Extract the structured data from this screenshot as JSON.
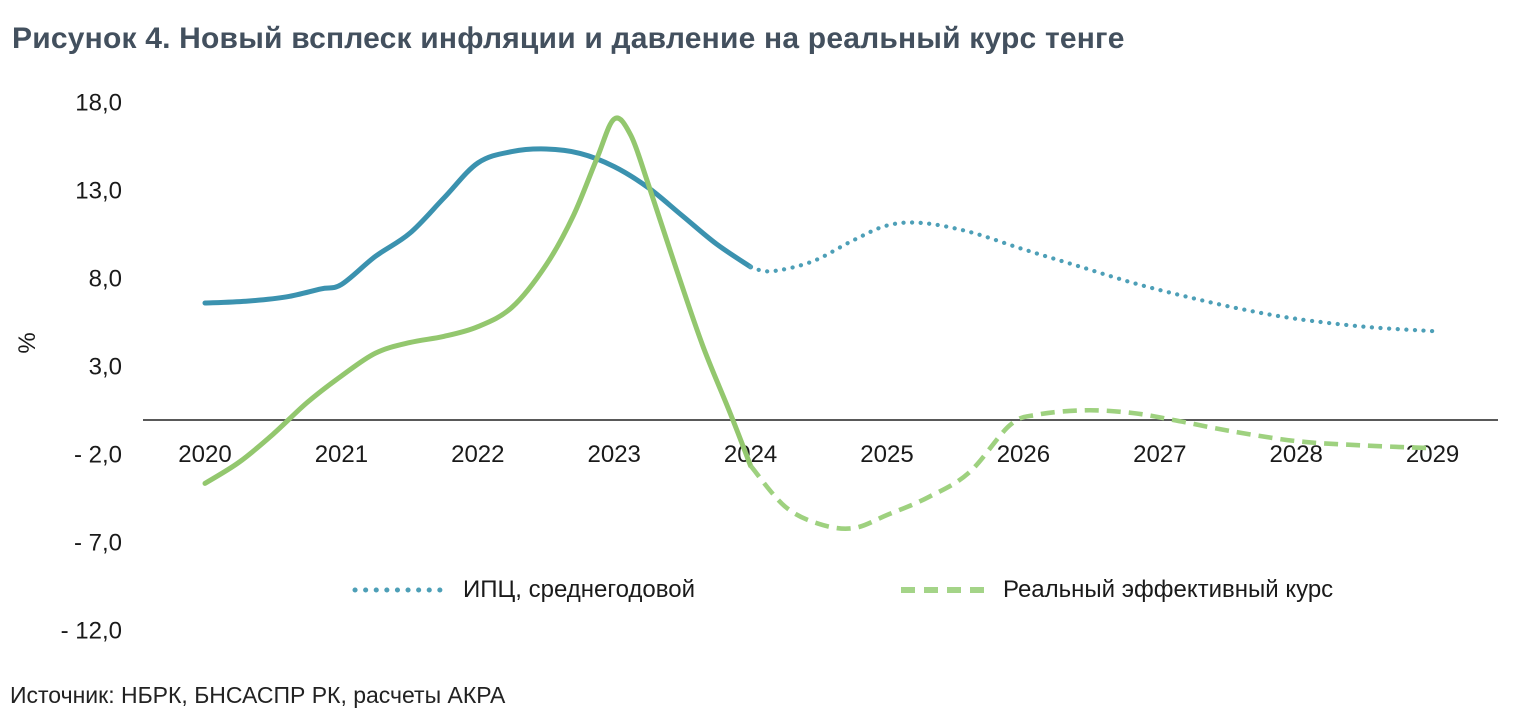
{
  "title": "Рисунок 4. Новый всплеск инфляции и давление на реальный курс тенге",
  "source": "Источник: НБРК, БНСАСПР РК, расчеты АКРА",
  "legend": [
    {
      "label": "ИПЦ, среднегодовой",
      "style": "dotted",
      "color": "#4d9fb7"
    },
    {
      "label": "Реальный эффективный курс",
      "style": "dashed",
      "color": "#a4d488"
    }
  ],
  "chart_data": {
    "type": "line",
    "title": "Рисунок 4. Новый всплеск инфляции и давление на реальный курс тенге",
    "xlabel": "",
    "ylabel": "%",
    "x_ticks": [
      "2020",
      "2021",
      "2022",
      "2023",
      "2024",
      "2025",
      "2026",
      "2027",
      "2028",
      "2029"
    ],
    "y_ticks": [
      {
        "label": "18,0",
        "value": 18
      },
      {
        "label": "13,0",
        "value": 13
      },
      {
        "label": "8,0",
        "value": 8
      },
      {
        "label": "3,0",
        "value": 3
      },
      {
        "label": "- 2,0",
        "value": -2
      },
      {
        "label": "- 7,0",
        "value": -7
      },
      {
        "label": "- 12,0",
        "value": -12
      }
    ],
    "xlim": [
      2019.9,
      2029.5
    ],
    "ylim": [
      -12,
      18
    ],
    "grid": false,
    "legend_position": "bottom",
    "axis_color": "#595959",
    "series": [
      {
        "id": "cpi-actual",
        "name": "ИПЦ, среднегодовой (факт)",
        "style": "solid",
        "color": "#3b92af",
        "points": [
          [
            2020.0,
            6.65
          ],
          [
            2020.3,
            6.75
          ],
          [
            2020.6,
            7.0
          ],
          [
            2020.85,
            7.45
          ],
          [
            2021.0,
            7.7
          ],
          [
            2021.25,
            9.3
          ],
          [
            2021.5,
            10.6
          ],
          [
            2021.75,
            12.6
          ],
          [
            2022.0,
            14.6
          ],
          [
            2022.25,
            15.25
          ],
          [
            2022.5,
            15.4
          ],
          [
            2022.75,
            15.15
          ],
          [
            2023.0,
            14.4
          ],
          [
            2023.25,
            13.2
          ],
          [
            2023.5,
            11.6
          ],
          [
            2023.75,
            10.0
          ],
          [
            2024.0,
            8.7
          ]
        ]
      },
      {
        "id": "cpi-forecast",
        "name": "ИПЦ, среднегодовой (прогноз)",
        "style": "dotted",
        "color": "#4d9fb7",
        "points": [
          [
            2024.0,
            8.7
          ],
          [
            2024.15,
            8.45
          ],
          [
            2024.45,
            9.0
          ],
          [
            2024.75,
            10.2
          ],
          [
            2025.0,
            11.05
          ],
          [
            2025.25,
            11.2
          ],
          [
            2025.6,
            10.7
          ],
          [
            2026.0,
            9.7
          ],
          [
            2026.4,
            8.75
          ],
          [
            2026.8,
            7.8
          ],
          [
            2027.2,
            7.0
          ],
          [
            2027.6,
            6.3
          ],
          [
            2028.0,
            5.75
          ],
          [
            2028.5,
            5.3
          ],
          [
            2029.0,
            5.05
          ]
        ]
      },
      {
        "id": "reer-actual",
        "name": "Реальный эффективный курс (факт)",
        "style": "solid",
        "color": "#93c76e",
        "points": [
          [
            2020.0,
            -3.6
          ],
          [
            2020.25,
            -2.4
          ],
          [
            2020.5,
            -0.8
          ],
          [
            2020.75,
            1.0
          ],
          [
            2021.0,
            2.5
          ],
          [
            2021.25,
            3.8
          ],
          [
            2021.5,
            4.4
          ],
          [
            2021.75,
            4.75
          ],
          [
            2022.0,
            5.3
          ],
          [
            2022.25,
            6.4
          ],
          [
            2022.5,
            8.8
          ],
          [
            2022.7,
            11.6
          ],
          [
            2022.87,
            14.8
          ],
          [
            2023.0,
            17.1
          ],
          [
            2023.12,
            16.2
          ],
          [
            2023.25,
            13.4
          ],
          [
            2023.45,
            8.7
          ],
          [
            2023.65,
            4.2
          ],
          [
            2023.85,
            0.4
          ],
          [
            2024.0,
            -2.6
          ]
        ]
      },
      {
        "id": "reer-forecast",
        "name": "Реальный эффективный курс (прогноз)",
        "style": "dashed",
        "color": "#9ed17f",
        "points": [
          [
            2024.0,
            -2.6
          ],
          [
            2024.25,
            -4.9
          ],
          [
            2024.5,
            -5.9
          ],
          [
            2024.75,
            -6.15
          ],
          [
            2025.0,
            -5.4
          ],
          [
            2025.3,
            -4.4
          ],
          [
            2025.6,
            -3.0
          ],
          [
            2025.9,
            -0.3
          ],
          [
            2026.1,
            0.3
          ],
          [
            2026.45,
            0.55
          ],
          [
            2026.8,
            0.4
          ],
          [
            2027.1,
            0.0
          ],
          [
            2027.5,
            -0.6
          ],
          [
            2028.0,
            -1.2
          ],
          [
            2028.5,
            -1.45
          ],
          [
            2029.0,
            -1.6
          ]
        ]
      }
    ]
  }
}
